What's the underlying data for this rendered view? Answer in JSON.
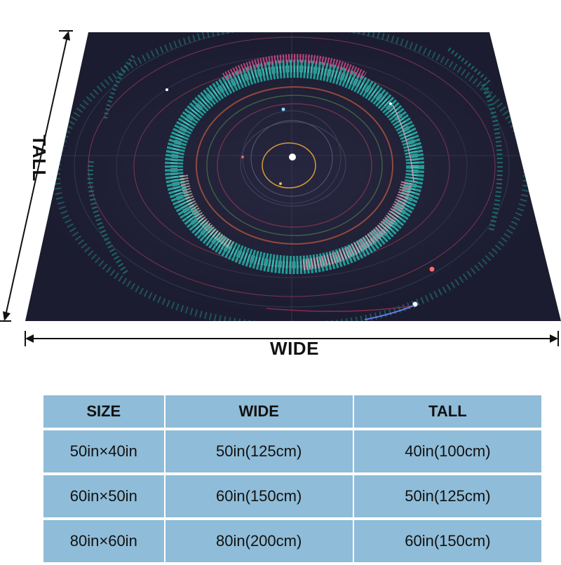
{
  "dimensions": {
    "wide_label": "WIDE",
    "tall_label": "TALL"
  },
  "product_image": {
    "background_color": "#1c1c30",
    "ring_colors": [
      "#2fd6c8",
      "#e07bb0",
      "#ffffff",
      "#d96a4a"
    ]
  },
  "size_table": {
    "headers": [
      "SIZE",
      "WIDE",
      "TALL"
    ],
    "rows": [
      [
        "50in×40in",
        "50in(125cm)",
        "40in(100cm)"
      ],
      [
        "60in×50in",
        "60in(150cm)",
        "50in(125cm)"
      ],
      [
        "80in×60in",
        "80in(200cm)",
        "60in(150cm)"
      ]
    ],
    "header_color": "#8fbcd8",
    "cell_color": "#8fbcd8"
  }
}
